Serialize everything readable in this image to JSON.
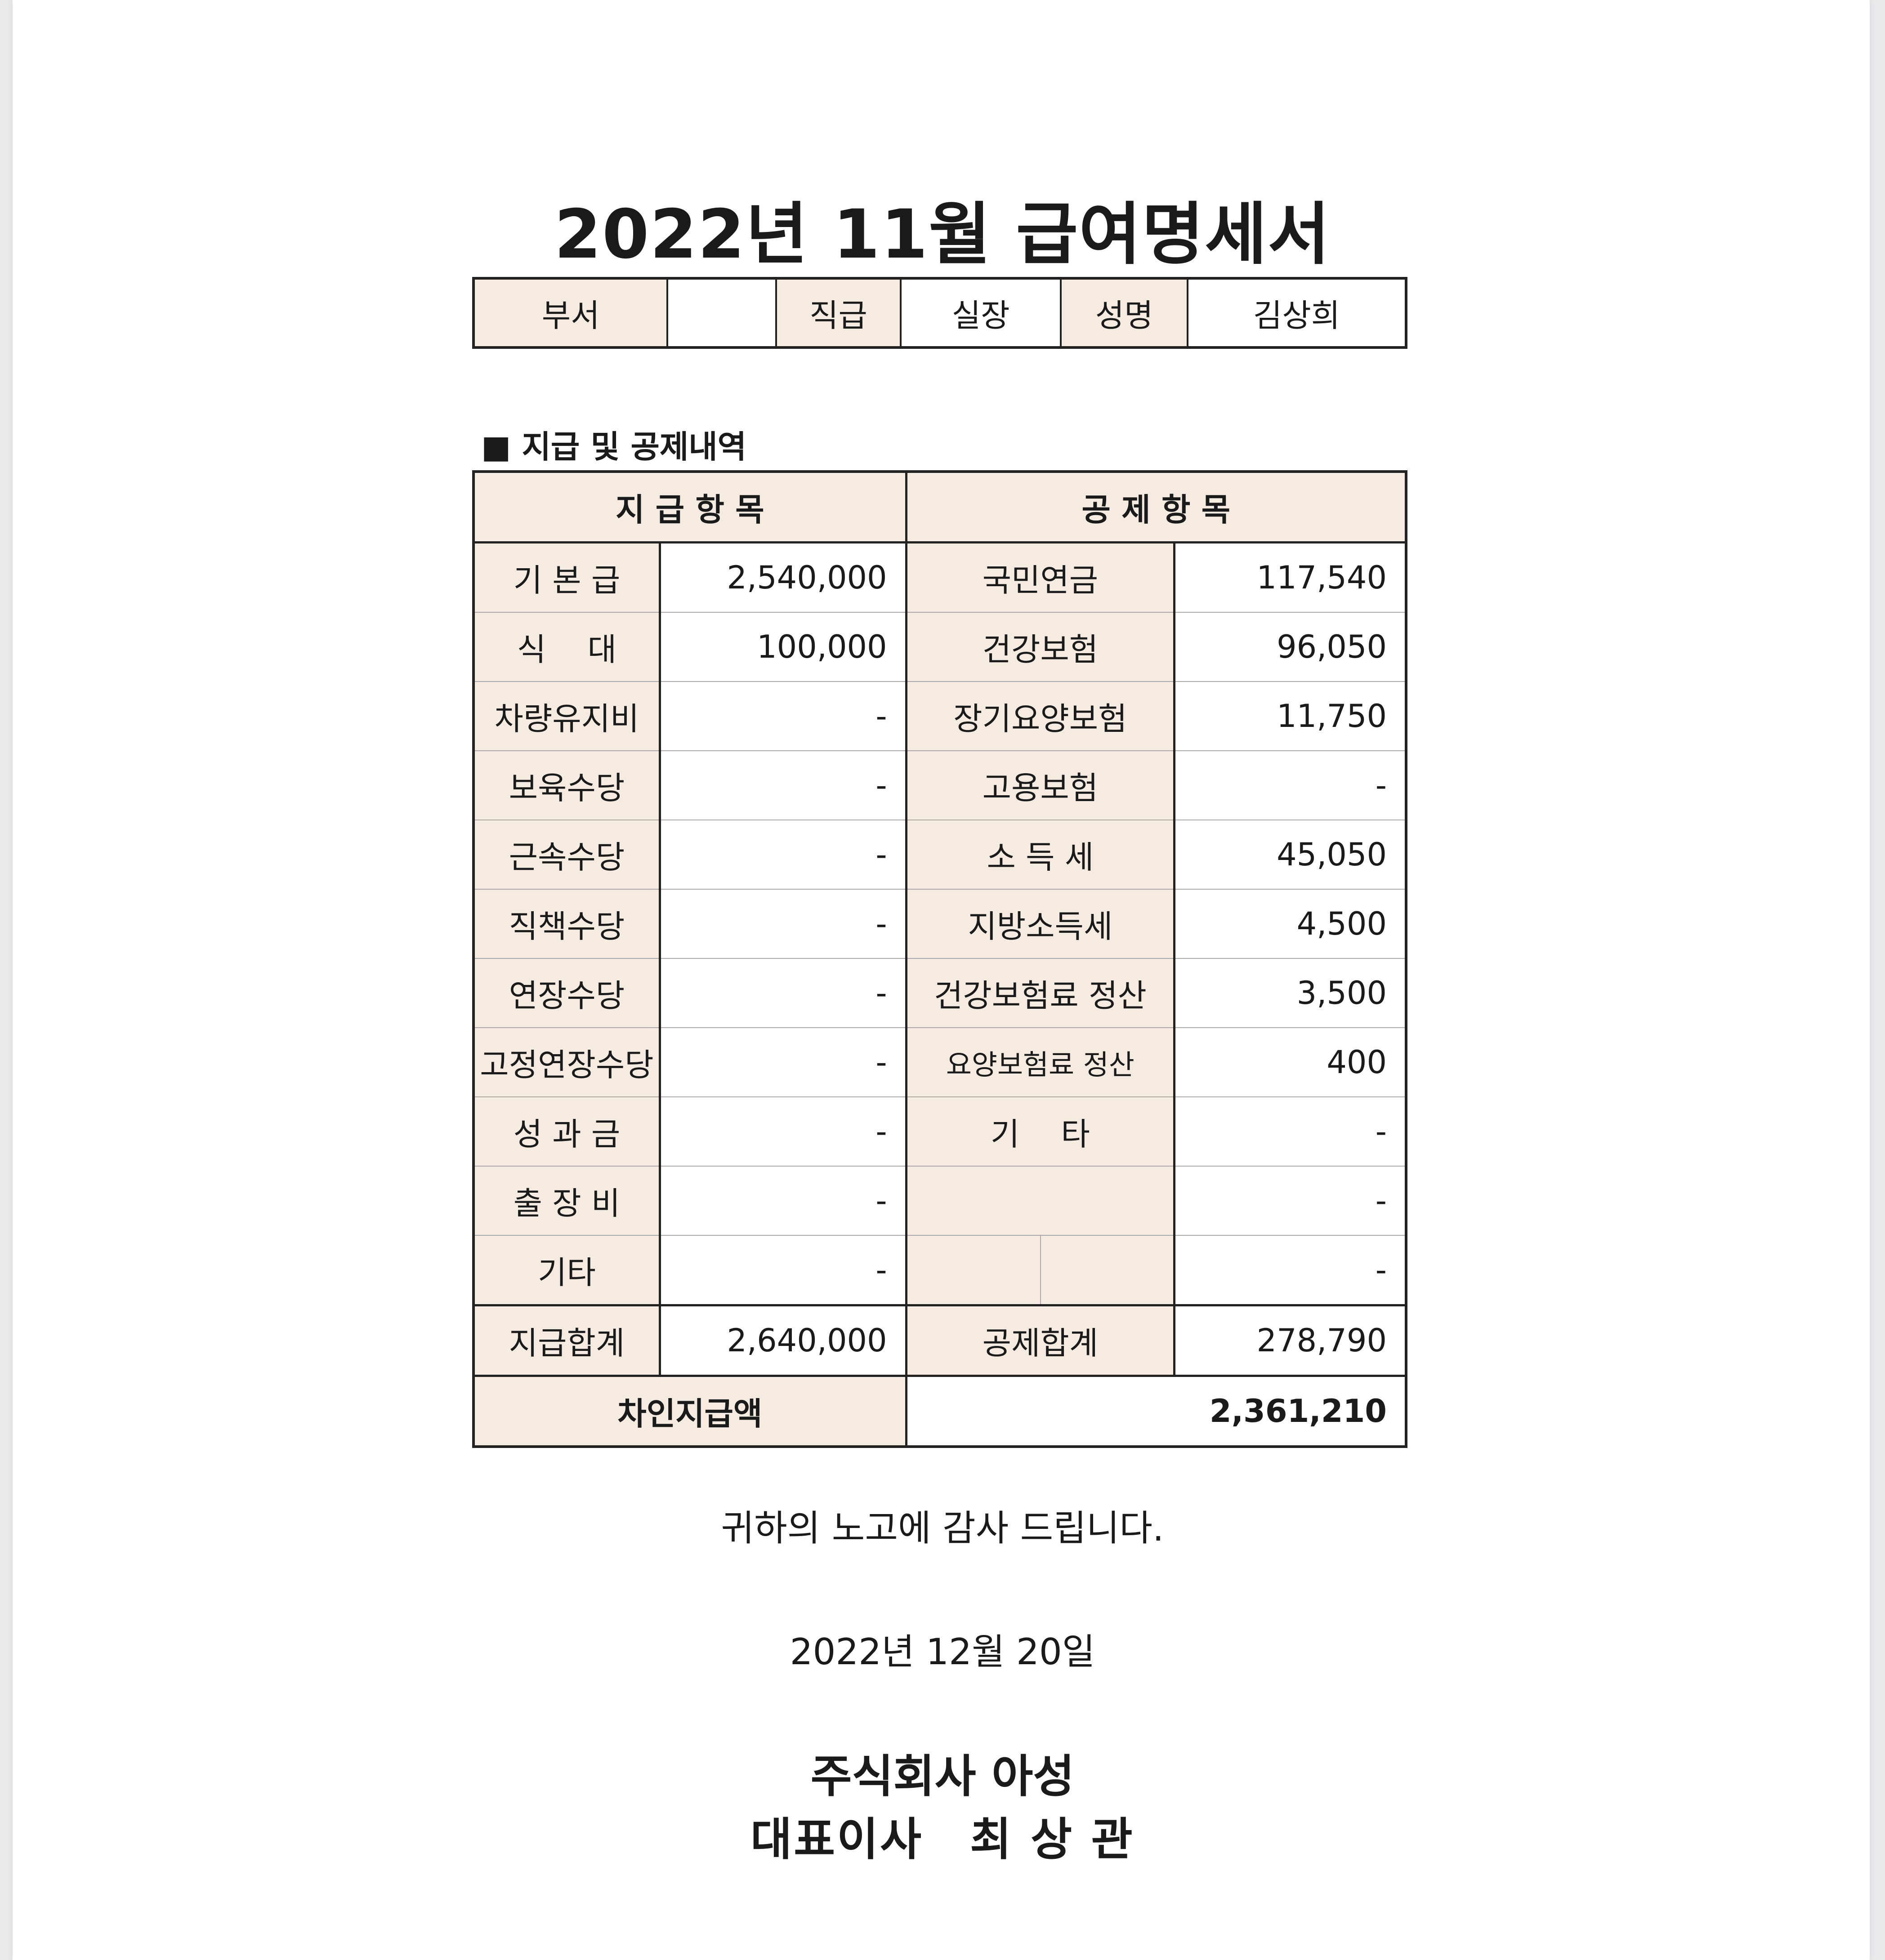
{
  "title": "2022년 11월 급여명세서",
  "employee": {
    "dept_label": "부서",
    "dept_value": "",
    "rank_label": "직급",
    "rank_value": "실장",
    "name_label": "성명",
    "name_value": "김상희"
  },
  "section_title": "■ 지급 및 공제내역",
  "table": {
    "pay_header": "지 급 항 목",
    "deduct_header": "공 제 항 목",
    "rows": [
      {
        "pay_label": "기 본 급",
        "pay_value": "2,540,000",
        "ded_label": "국민연금",
        "ded_value": "117,540"
      },
      {
        "pay_label": "식　 대",
        "pay_value": "100,000",
        "ded_label": "건강보험",
        "ded_value": "96,050"
      },
      {
        "pay_label": "차량유지비",
        "pay_value": "-",
        "ded_label": "장기요양보험",
        "ded_value": "11,750"
      },
      {
        "pay_label": "보육수당",
        "pay_value": "-",
        "ded_label": "고용보험",
        "ded_value": "-"
      },
      {
        "pay_label": "근속수당",
        "pay_value": "-",
        "ded_label": "소 득 세",
        "ded_value": "45,050"
      },
      {
        "pay_label": "직책수당",
        "pay_value": "-",
        "ded_label": "지방소득세",
        "ded_value": "4,500"
      },
      {
        "pay_label": "연장수당",
        "pay_value": "-",
        "ded_label": "건강보험료 정산",
        "ded_value": "3,500"
      },
      {
        "pay_label": "고정연장수당",
        "pay_value": "-",
        "ded_label": "요양보험료 정산",
        "ded_value": "400"
      },
      {
        "pay_label": "성 과 금",
        "pay_value": "-",
        "ded_label": "기　 타",
        "ded_value": "-"
      },
      {
        "pay_label": "출 장 비",
        "pay_value": "-",
        "ded_label": "",
        "ded_value": "-"
      },
      {
        "pay_label": "기타",
        "pay_value": "-",
        "ded_label": "",
        "ded_value": "-"
      }
    ],
    "pay_total_label": "지급합계",
    "pay_total_value": "2,640,000",
    "ded_total_label": "공제합계",
    "ded_total_value": "278,790",
    "net_label": "차인지급액",
    "net_value": "2,361,210"
  },
  "thanks": "귀하의 노고에 감사 드립니다.",
  "date": "2022년 12월 20일",
  "company": "주식회사 아성",
  "ceo": "대표이사　최 상 관",
  "colors": {
    "label_bg": "#f6ebe1",
    "border": "#222222"
  }
}
